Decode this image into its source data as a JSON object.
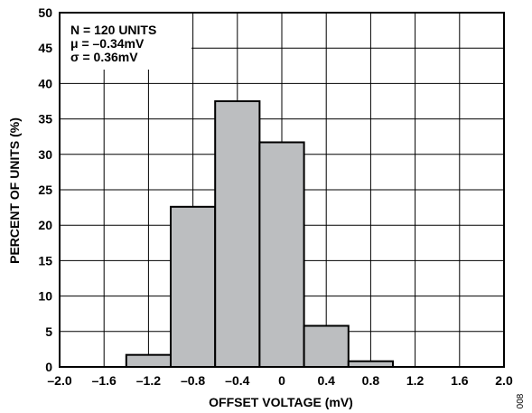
{
  "chart_data": {
    "type": "bar",
    "title": "",
    "xlabel": "OFFSET VOLTAGE (mV)",
    "ylabel": "PERCENT OF UNITS (%)",
    "xlim": [
      -2.0,
      2.0
    ],
    "ylim": [
      0,
      50
    ],
    "grid": true,
    "bin_width": 0.4,
    "bins": [
      {
        "start": -1.4,
        "end": -1.0,
        "value": 1.7
      },
      {
        "start": -1.0,
        "end": -0.6,
        "value": 22.6
      },
      {
        "start": -0.6,
        "end": -0.2,
        "value": 37.5
      },
      {
        "start": -0.2,
        "end": 0.2,
        "value": 31.7
      },
      {
        "start": 0.2,
        "end": 0.6,
        "value": 5.8
      },
      {
        "start": 0.6,
        "end": 1.0,
        "value": 0.8
      }
    ],
    "x_ticks": [
      -2.0,
      -1.6,
      -1.2,
      -0.8,
      -0.4,
      0,
      0.4,
      0.8,
      1.2,
      1.6,
      2.0
    ],
    "x_tick_labels": [
      "–2.0",
      "–1.6",
      "–1.2",
      "–0.8",
      "–0.4",
      "0",
      "0.4",
      "0.8",
      "1.2",
      "1.6",
      "2.0"
    ],
    "y_ticks": [
      0,
      5,
      10,
      15,
      20,
      25,
      30,
      35,
      40,
      45,
      50
    ],
    "y_tick_labels": [
      "0",
      "5",
      "10",
      "15",
      "20",
      "25",
      "30",
      "35",
      "40",
      "45",
      "50"
    ],
    "annotations": [
      "N = 120 UNITS",
      "μ = –0.34mV",
      "σ = 0.36mV"
    ],
    "figure_code": "008",
    "colors": {
      "bar_fill": "#bcbec0",
      "bar_edge": "#000000",
      "grid": "#000000"
    }
  }
}
